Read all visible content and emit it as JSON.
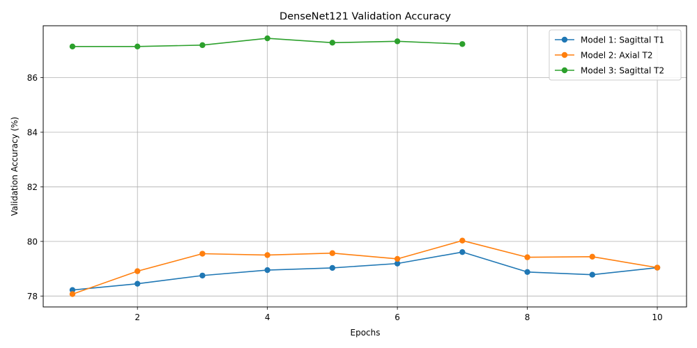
{
  "chart_data": {
    "type": "line",
    "title": "DenseNet121 Validation Accuracy",
    "xlabel": "Epochs",
    "ylabel": "Validation Accuracy (%)",
    "xlim": [
      0.55,
      10.45
    ],
    "ylim": [
      77.6,
      87.9
    ],
    "xticks": [
      2,
      4,
      6,
      8,
      10
    ],
    "yticks": [
      78,
      80,
      82,
      84,
      86
    ],
    "grid": true,
    "legend_position": "top-right",
    "series": [
      {
        "name": "Model 1: Sagittal T1",
        "color": "#1f77b4",
        "x": [
          1,
          2,
          3,
          4,
          5,
          6,
          7,
          8,
          9,
          10
        ],
        "values": [
          78.22,
          78.45,
          78.75,
          78.95,
          79.03,
          79.19,
          79.61,
          78.88,
          78.78,
          79.04
        ]
      },
      {
        "name": "Model 2: Axial T2",
        "color": "#ff7f0e",
        "x": [
          1,
          2,
          3,
          4,
          5,
          6,
          7,
          8,
          9,
          10
        ],
        "values": [
          78.07,
          78.91,
          79.55,
          79.5,
          79.57,
          79.36,
          80.03,
          79.42,
          79.44,
          79.04
        ]
      },
      {
        "name": "Model 3: Sagittal T2",
        "color": "#2ca02c",
        "x": [
          1,
          2,
          3,
          4,
          5,
          6,
          7
        ],
        "values": [
          87.14,
          87.14,
          87.19,
          87.44,
          87.28,
          87.33,
          87.23
        ]
      }
    ]
  }
}
